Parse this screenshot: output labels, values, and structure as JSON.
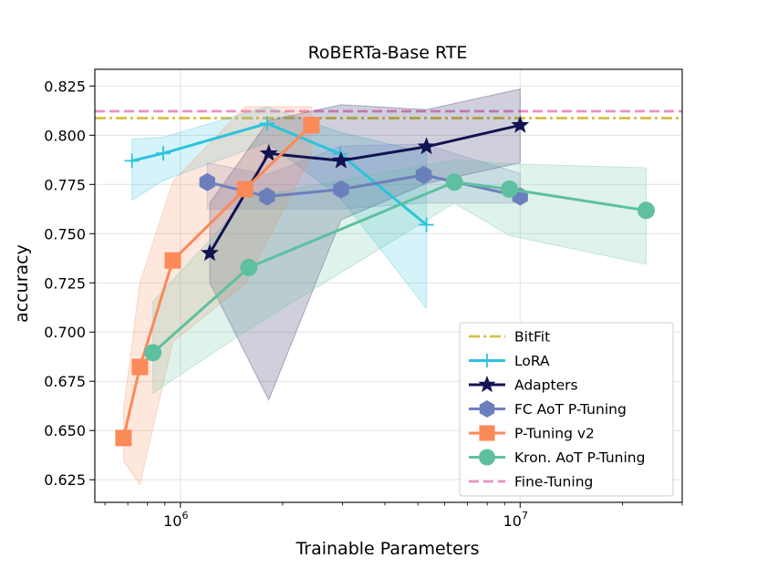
{
  "chart_data": {
    "type": "line",
    "title": "RoBERTa-Base RTE",
    "xlabel": "Trainable Parameters",
    "ylabel": "accuracy",
    "xscale": "log",
    "xlim": [
      560000,
      30000000
    ],
    "ylim": [
      0.6135,
      0.8335
    ],
    "grid": true,
    "legend_position": "lower right",
    "x_ticks": [
      {
        "value": 1000000,
        "base": "10",
        "exp": "6"
      },
      {
        "value": 10000000,
        "base": "10",
        "exp": "7"
      }
    ],
    "y_ticks": [
      {
        "value": 0.625,
        "label": "0.625"
      },
      {
        "value": 0.65,
        "label": "0.650"
      },
      {
        "value": 0.675,
        "label": "0.675"
      },
      {
        "value": 0.7,
        "label": "0.700"
      },
      {
        "value": 0.725,
        "label": "0.725"
      },
      {
        "value": 0.75,
        "label": "0.750"
      },
      {
        "value": 0.775,
        "label": "0.775"
      },
      {
        "value": 0.8,
        "label": "0.800"
      },
      {
        "value": 0.825,
        "label": "0.825"
      }
    ],
    "hlines": [
      {
        "name": "BitFit",
        "y": 0.8087,
        "color": "#d4c248",
        "style": "dashdot"
      },
      {
        "name": "Fine-Tuning",
        "y": 0.8122,
        "color": "#ea8fc8",
        "style": "dashed"
      }
    ],
    "series": [
      {
        "name": "LoRA",
        "color": "#2bc3de",
        "marker": "plus",
        "x": [
          720000,
          890000,
          1800000,
          2950000,
          5300000
        ],
        "y": [
          0.787,
          0.7908,
          0.806,
          0.7905,
          0.7545
        ],
        "band_lower": [
          0.767,
          0.777,
          0.7962,
          0.7685,
          0.712
        ],
        "band_upper": [
          0.798,
          0.799,
          0.8145,
          0.8015,
          0.791
        ]
      },
      {
        "name": "Adapters",
        "color": "#121351",
        "marker": "star",
        "x": [
          1220000,
          1820000,
          2970000,
          5300000,
          10000000
        ],
        "y": [
          0.7401,
          0.7907,
          0.7871,
          0.7942,
          0.8051
        ],
        "band_lower": [
          0.725,
          0.6655,
          0.757,
          0.7755,
          0.786
        ],
        "band_upper": [
          0.7655,
          0.8075,
          0.8155,
          0.813,
          0.8235
        ]
      },
      {
        "name": "FC AoT P-Tuning",
        "color": "#6c7fbd",
        "marker": "hexagon",
        "x": [
          1200000,
          1800000,
          2970000,
          5200000,
          10000000
        ],
        "y": [
          0.7762,
          0.7689,
          0.7725,
          0.7798,
          0.7689
        ],
        "band_lower": [
          0.7625,
          0.7625,
          0.7625,
          0.7655,
          0.7655
        ],
        "band_upper": [
          0.786,
          0.78,
          0.7945,
          0.7955,
          0.7805
        ]
      },
      {
        "name": "P-Tuning v2",
        "color": "#fb8a59",
        "marker": "square",
        "x": [
          680000,
          760000,
          950000,
          1550000,
          2430000
        ],
        "y": [
          0.6462,
          0.6823,
          0.7364,
          0.7726,
          0.8051
        ],
        "band_lower": [
          0.6345,
          0.6225,
          0.695,
          0.7245,
          0.7895
        ],
        "band_upper": [
          0.6605,
          0.725,
          0.7765,
          0.8145,
          0.8145
        ]
      },
      {
        "name": "Kron. AoT P-Tuning",
        "color": "#5ec0a0",
        "marker": "circle",
        "x": [
          830000,
          1590000,
          6400000,
          9300000,
          23500000
        ],
        "y": [
          0.6895,
          0.7328,
          0.7762,
          0.7726,
          0.7618
        ],
        "band_lower": [
          0.669,
          0.7015,
          0.7655,
          0.749,
          0.7345
        ],
        "band_upper": [
          0.7155,
          0.7685,
          0.7875,
          0.7855,
          0.7835
        ]
      }
    ],
    "legend_order": [
      "BitFit",
      "LoRA",
      "Adapters",
      "FC AoT P-Tuning",
      "P-Tuning v2",
      "Kron. AoT P-Tuning",
      "Fine-Tuning"
    ]
  }
}
